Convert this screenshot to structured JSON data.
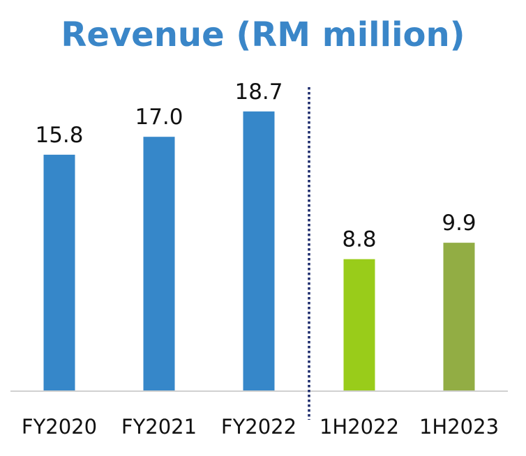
{
  "chart_data": {
    "type": "bar",
    "title": "Revenue (RM million)",
    "categories": [
      "FY2020",
      "FY2021",
      "FY2022",
      "1H2022",
      "1H2023"
    ],
    "values": [
      15.8,
      17.0,
      18.7,
      8.8,
      9.9
    ],
    "value_labels": [
      "15.8",
      "17.0",
      "18.7",
      "8.8",
      "9.9"
    ],
    "colors": [
      "#3687c9",
      "#3687c9",
      "#3687c9",
      "#99cc1a",
      "#92ad44"
    ],
    "xlabel": "",
    "ylabel": "",
    "ylim": [
      0,
      20
    ],
    "grid": false,
    "separator": "dotted line between FY2022 and 1H2022",
    "separator_color": "#1b2a6b",
    "axis_color": "#d0d0d0"
  }
}
